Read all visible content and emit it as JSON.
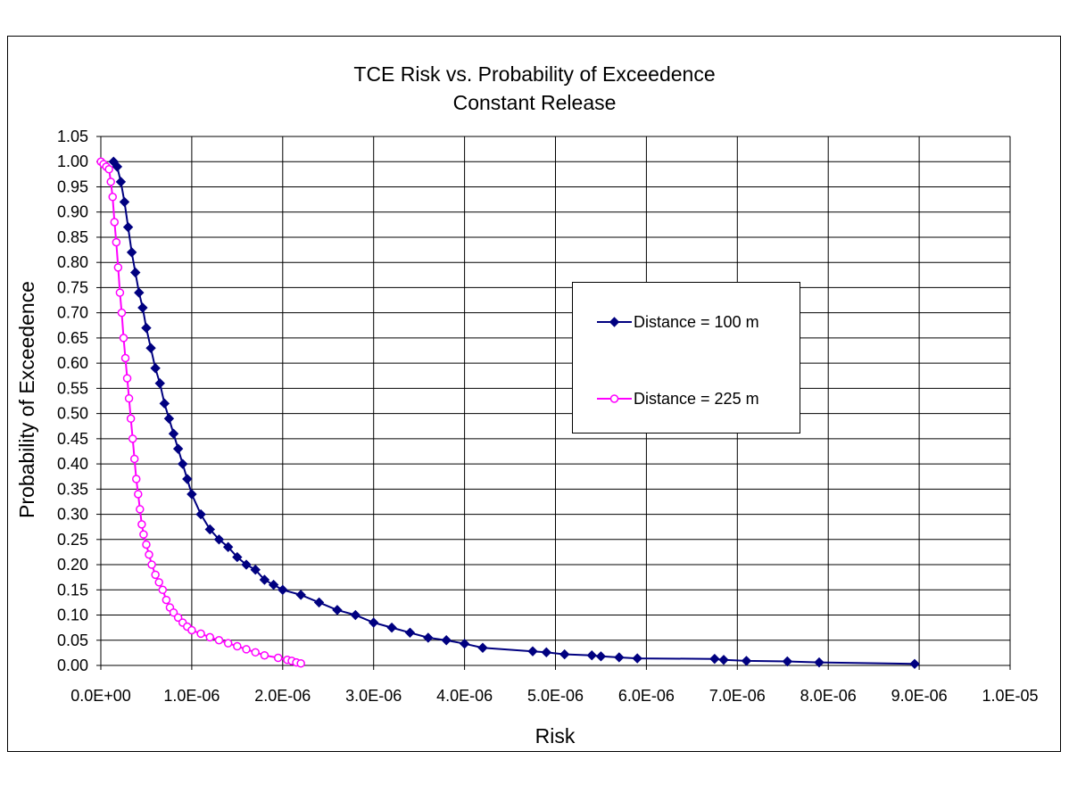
{
  "chart_data": {
    "type": "scatter",
    "title": "TCE Risk vs. Probability of Exceedence",
    "subtitle": "Constant Release",
    "xlabel": "Risk",
    "ylabel": "Probability of Exceedence",
    "xlim": [
      0,
      1e-05
    ],
    "ylim": [
      0,
      1.05
    ],
    "xtick_labels": [
      "0.0E+00",
      "1.0E-06",
      "2.0E-06",
      "3.0E-06",
      "4.0E-06",
      "5.0E-06",
      "6.0E-06",
      "7.0E-06",
      "8.0E-06",
      "9.0E-06",
      "1.0E-05"
    ],
    "ytick_labels": [
      "0.00",
      "0.05",
      "0.10",
      "0.15",
      "0.20",
      "0.25",
      "0.30",
      "0.35",
      "0.40",
      "0.45",
      "0.50",
      "0.55",
      "0.60",
      "0.65",
      "0.70",
      "0.75",
      "0.80",
      "0.85",
      "0.90",
      "0.95",
      "1.00",
      "1.05"
    ],
    "grid": true,
    "legend_position": "right-center",
    "series": [
      {
        "name": "Distance = 100 m",
        "color": "#000080",
        "marker": "diamond",
        "x": [
          1.4e-07,
          1.8e-07,
          2.2e-07,
          2.6e-07,
          3e-07,
          3.4e-07,
          3.8e-07,
          4.2e-07,
          4.6e-07,
          5e-07,
          5.5e-07,
          6e-07,
          6.5e-07,
          7e-07,
          7.5e-07,
          8e-07,
          8.5e-07,
          9e-07,
          9.5e-07,
          1e-06,
          1.1e-06,
          1.2e-06,
          1.3e-06,
          1.4e-06,
          1.5e-06,
          1.6e-06,
          1.7e-06,
          1.8e-06,
          1.9e-06,
          2e-06,
          2.2e-06,
          2.4e-06,
          2.6e-06,
          2.8e-06,
          3e-06,
          3.2e-06,
          3.4e-06,
          3.6e-06,
          3.8e-06,
          4e-06,
          4.2e-06,
          4.75e-06,
          4.9e-06,
          5.1e-06,
          5.4e-06,
          5.5e-06,
          5.7e-06,
          5.9e-06,
          6.75e-06,
          6.85e-06,
          7.1e-06,
          7.55e-06,
          7.9e-06,
          8.95e-06
        ],
        "y": [
          1.0,
          0.99,
          0.96,
          0.92,
          0.87,
          0.82,
          0.78,
          0.74,
          0.71,
          0.67,
          0.63,
          0.59,
          0.56,
          0.52,
          0.49,
          0.46,
          0.43,
          0.4,
          0.37,
          0.34,
          0.3,
          0.27,
          0.25,
          0.235,
          0.215,
          0.2,
          0.19,
          0.17,
          0.16,
          0.15,
          0.14,
          0.125,
          0.11,
          0.1,
          0.085,
          0.075,
          0.065,
          0.055,
          0.05,
          0.043,
          0.035,
          0.028,
          0.026,
          0.022,
          0.02,
          0.018,
          0.016,
          0.014,
          0.013,
          0.011,
          0.009,
          0.008,
          0.006,
          0.003
        ]
      },
      {
        "name": "Distance = 225 m",
        "color": "#ff00ff",
        "marker": "circle",
        "x": [
          1e-09,
          3e-08,
          6e-08,
          9e-08,
          1.1e-07,
          1.3e-07,
          1.5e-07,
          1.7e-07,
          1.9e-07,
          2.1e-07,
          2.3e-07,
          2.5e-07,
          2.7e-07,
          2.9e-07,
          3.1e-07,
          3.3e-07,
          3.5e-07,
          3.7e-07,
          3.9e-07,
          4.1e-07,
          4.3e-07,
          4.5e-07,
          4.7e-07,
          5e-07,
          5.3e-07,
          5.6e-07,
          6e-07,
          6.4e-07,
          6.8e-07,
          7.2e-07,
          7.6e-07,
          8e-07,
          8.5e-07,
          9e-07,
          9.5e-07,
          1e-06,
          1.1e-06,
          1.2e-06,
          1.3e-06,
          1.4e-06,
          1.5e-06,
          1.6e-06,
          1.7e-06,
          1.8e-06,
          1.95e-06,
          2.05e-06,
          2.1e-06,
          2.15e-06,
          2.2e-06
        ],
        "y": [
          1.0,
          0.995,
          0.99,
          0.985,
          0.96,
          0.93,
          0.88,
          0.84,
          0.79,
          0.74,
          0.7,
          0.65,
          0.61,
          0.57,
          0.53,
          0.49,
          0.45,
          0.41,
          0.37,
          0.34,
          0.31,
          0.28,
          0.26,
          0.24,
          0.22,
          0.2,
          0.18,
          0.165,
          0.15,
          0.13,
          0.115,
          0.105,
          0.095,
          0.085,
          0.077,
          0.07,
          0.063,
          0.056,
          0.05,
          0.044,
          0.038,
          0.032,
          0.026,
          0.02,
          0.015,
          0.011,
          0.009,
          0.006,
          0.004
        ]
      }
    ]
  }
}
